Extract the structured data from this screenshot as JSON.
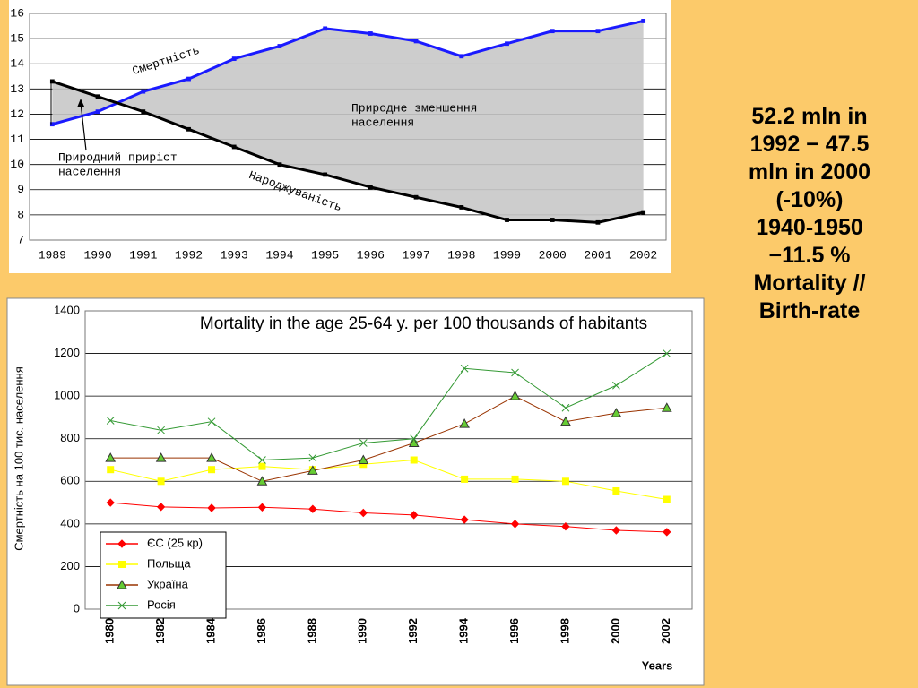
{
  "chart_data": [
    {
      "type": "line",
      "categories": [
        "1989",
        "1990",
        "1991",
        "1992",
        "1993",
        "1994",
        "1995",
        "1996",
        "1997",
        "1998",
        "1999",
        "2000",
        "2001",
        "2002"
      ],
      "series": [
        {
          "name": "Смертність",
          "color": "#1a1aff",
          "marker": "square",
          "values": [
            11.6,
            12.1,
            12.9,
            13.4,
            14.2,
            14.7,
            15.4,
            15.2,
            14.9,
            14.3,
            14.8,
            15.3,
            15.3,
            15.7
          ]
        },
        {
          "name": "Народжуваність",
          "color": "#000000",
          "marker": "square",
          "values": [
            13.3,
            12.7,
            12.1,
            11.4,
            10.7,
            10.0,
            9.6,
            9.1,
            8.7,
            8.3,
            7.8,
            7.8,
            7.7,
            8.1
          ]
        }
      ],
      "annotations": [
        [
          "Природне зменшення",
          "населення"
        ],
        [
          "Природний приріст",
          "населення"
        ]
      ],
      "ylim": [
        7,
        16
      ],
      "yticks": [
        7,
        8,
        9,
        10,
        11,
        12,
        13,
        14,
        15,
        16
      ],
      "grid": true,
      "shade_between": true
    },
    {
      "type": "line",
      "title": "Mortality in the age 25-64 y. per 100 thousands of habitants",
      "y_label": "Смертність на 100 тис. населення",
      "x_label": "Years",
      "categories": [
        "1980",
        "1982",
        "1984",
        "1986",
        "1988",
        "1990",
        "1992",
        "1994",
        "1996",
        "1998",
        "2000",
        "2002"
      ],
      "series": [
        {
          "name": "ЄС (25 кр)",
          "color": "#ff0000",
          "marker": "diamond",
          "values": [
            500,
            480,
            475,
            478,
            470,
            452,
            442,
            420,
            400,
            388,
            370,
            362
          ]
        },
        {
          "name": "Польща",
          "color": "#ffff00",
          "marker": "square",
          "values": [
            655,
            600,
            655,
            670,
            655,
            680,
            700,
            610,
            610,
            600,
            555,
            515
          ]
        },
        {
          "name": "Україна",
          "color": "#993300",
          "marker": "triangle",
          "marker_color": "#66cc33",
          "values": [
            710,
            710,
            710,
            600,
            650,
            700,
            780,
            870,
            1000,
            880,
            920,
            945
          ]
        },
        {
          "name": "Росія",
          "color": "#339933",
          "marker": "x",
          "values": [
            885,
            840,
            880,
            700,
            710,
            780,
            800,
            1130,
            1110,
            945,
            1050,
            1200
          ]
        }
      ],
      "ylim": [
        0,
        1400
      ],
      "yticks": [
        0,
        200,
        400,
        600,
        800,
        1000,
        1200,
        1400
      ],
      "grid": true,
      "legend": "lower-left"
    }
  ],
  "side_text": [
    "52.2 mln in",
    "1992 − 47.5",
    "mln in  2000",
    "(-10%)",
    "1940-1950",
    "−11.5 %",
    "Mortality //",
    "Birth-rate"
  ]
}
